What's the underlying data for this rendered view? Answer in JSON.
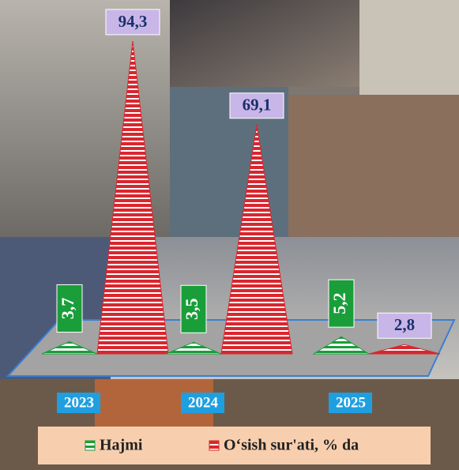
{
  "chart_data": {
    "type": "pyramid",
    "categories": [
      "2023",
      "2024",
      "2025"
    ],
    "series": [
      {
        "name": "Hajmi",
        "color": "#1a9e3a",
        "values": [
          3.7,
          3.5,
          5.2
        ],
        "value_labels": [
          "3,7",
          "3,5",
          "5,2"
        ]
      },
      {
        "name": "O‘sish sur'ati, % da",
        "color": "#d9262e",
        "values": [
          94.3,
          69.1,
          2.8
        ],
        "value_labels": [
          "94,3",
          "69,1",
          "2,8"
        ]
      }
    ]
  }
}
